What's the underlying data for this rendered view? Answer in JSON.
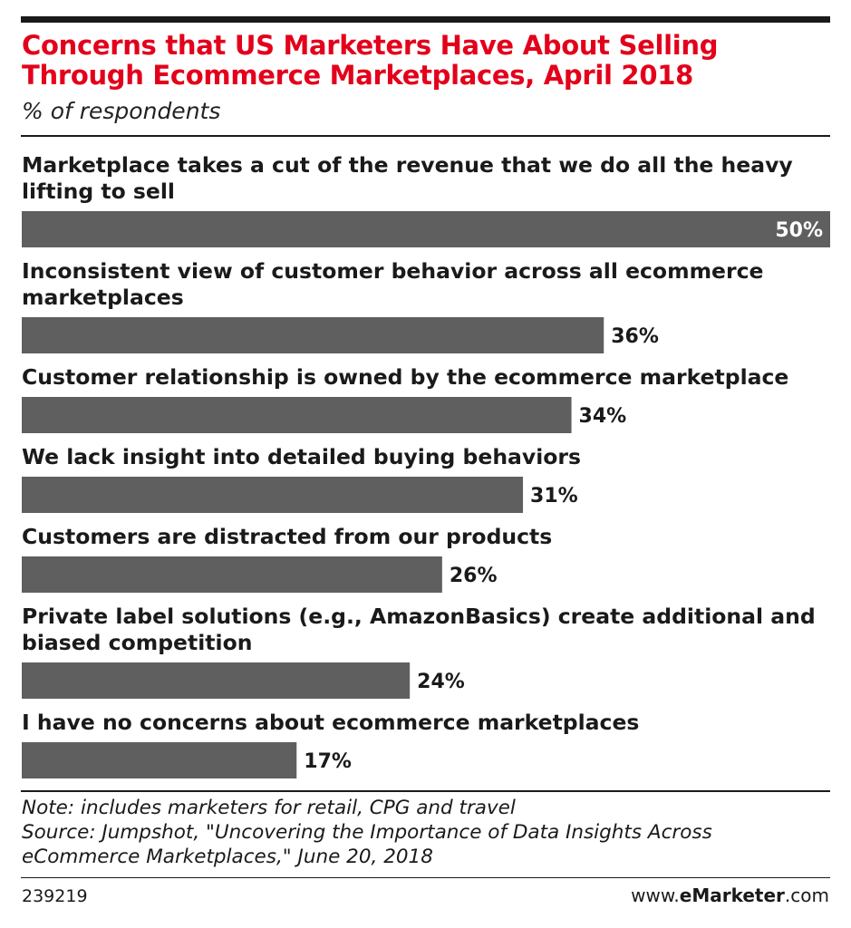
{
  "header": {
    "title": "Concerns that US Marketers Have About Selling Through Ecommerce Marketplaces, April 2018",
    "subtitle": "% of respondents"
  },
  "chart_data": {
    "type": "bar",
    "orientation": "horizontal",
    "title": "Concerns that US Marketers Have About Selling Through Ecommerce Marketplaces, April 2018",
    "subtitle": "% of respondents",
    "categories": [
      "Marketplace takes a cut of the revenue that we do all the heavy lifting to sell",
      "Inconsistent view of customer behavior across all ecommerce marketplaces",
      "Customer relationship is owned by the ecommerce marketplace",
      "We lack insight into detailed buying behaviors",
      "Customers are distracted from our products",
      "Private label solutions (e.g., AmazonBasics) create additional and biased competition",
      "I have no concerns about ecommerce marketplaces"
    ],
    "values": [
      50,
      36,
      34,
      31,
      26,
      24,
      17
    ],
    "value_labels": [
      "50%",
      "36%",
      "34%",
      "31%",
      "26%",
      "24%",
      "17%"
    ],
    "xlim": [
      0,
      50
    ],
    "grid": false,
    "bar_color": "#5f5f5f"
  },
  "footer": {
    "note": "Note: includes marketers for retail, CPG and travel",
    "source_line1": "Source: Jumpshot, \"Uncovering the Importance of Data Insights Across",
    "source_line2": "eCommerce Marketplaces,\" June 20, 2018",
    "chart_id": "239219",
    "brand_prefix": "www.",
    "brand_name": "eMarketer",
    "brand_suffix": ".com"
  }
}
